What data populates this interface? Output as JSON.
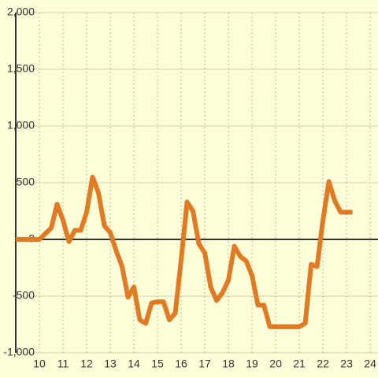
{
  "chart_data": {
    "type": "line",
    "x": [
      9,
      10,
      10.25,
      10.5,
      10.75,
      11,
      11.25,
      11.5,
      11.75,
      12,
      12.25,
      12.5,
      12.75,
      13,
      13.25,
      13.5,
      13.75,
      14,
      14.25,
      14.5,
      14.75,
      15,
      15.25,
      15.5,
      15.75,
      16,
      16.25,
      16.5,
      16.75,
      17,
      17.25,
      17.5,
      17.75,
      18,
      18.25,
      18.5,
      18.75,
      19,
      19.25,
      19.5,
      19.75,
      20,
      20.25,
      20.5,
      20.75,
      21,
      21.25,
      21.5,
      21.75,
      22,
      22.25,
      22.5,
      22.75,
      23,
      23.25
    ],
    "values": [
      0,
      0,
      50,
      100,
      310,
      170,
      -20,
      80,
      80,
      240,
      550,
      410,
      120,
      60,
      -100,
      -240,
      -510,
      -420,
      -710,
      -740,
      -560,
      -550,
      -550,
      -710,
      -650,
      -180,
      330,
      250,
      -40,
      -120,
      -420,
      -540,
      -470,
      -360,
      -60,
      -150,
      -190,
      -320,
      -580,
      -580,
      -770,
      -770,
      -770,
      -770,
      -770,
      -770,
      -740,
      -220,
      -240,
      170,
      510,
      340,
      240,
      240,
      240
    ],
    "color": "#e07b24",
    "xlim": [
      9,
      24.33
    ],
    "xticks": [
      10,
      11,
      12,
      13,
      14,
      15,
      16,
      17,
      18,
      19,
      20,
      21,
      22,
      23,
      24
    ],
    "ylim": [
      -1000,
      2000
    ],
    "yticks": [
      {
        "value": -1000,
        "label": "-1,000"
      },
      -500,
      0,
      500,
      {
        "value": 1000,
        "label": "1,000"
      },
      {
        "value": 1500,
        "label": "1,500"
      },
      {
        "value": 2000,
        "label": "2,000"
      }
    ],
    "grid": true
  }
}
